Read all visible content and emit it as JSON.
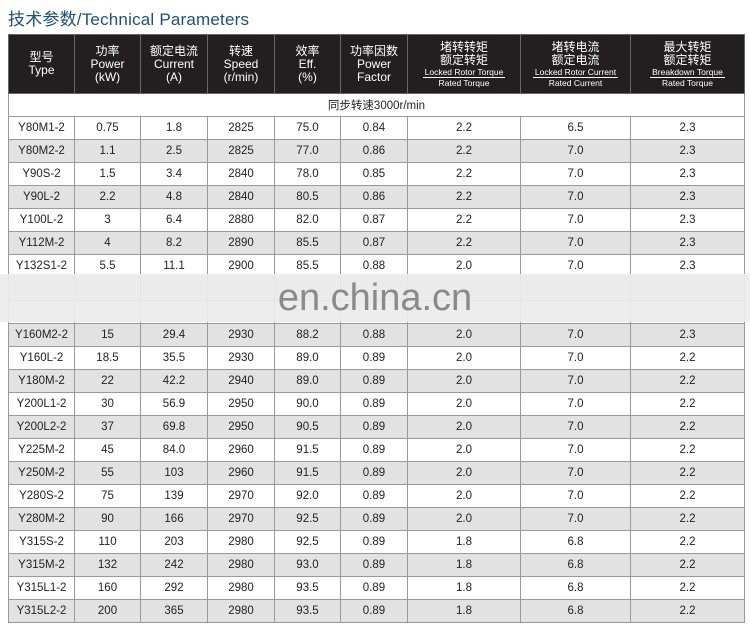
{
  "title": "技术参数/Technical Parameters",
  "headers": [
    {
      "cn": "型号",
      "en1": "Type"
    },
    {
      "cn": "功率",
      "en1": "Power",
      "en2": "(kW)"
    },
    {
      "cn": "额定电流",
      "en1": "Current",
      "en2": "(A)"
    },
    {
      "cn": "转速",
      "en1": "Speed",
      "en2": "(r/min)"
    },
    {
      "cn": "效率",
      "en1": "Eff.",
      "en2": "(%)"
    },
    {
      "cn": "功率因数",
      "en1": "Power",
      "en2": "Factor"
    },
    {
      "cn": "堵转转矩",
      "cn2": "额定转矩",
      "num": "Locked Rotor Torque",
      "den": "Rated Torque"
    },
    {
      "cn": "堵转电流",
      "cn2": "额定电流",
      "num": "Locked Rotor Current",
      "den": "Rated Current"
    },
    {
      "cn": "最大转矩",
      "cn2": "额定转矩",
      "num": "Breakdown Torque",
      "den": "Rated Torque"
    }
  ],
  "sync_speed": "同步转速3000r/min",
  "rows": [
    [
      "Y80M1-2",
      "0.75",
      "1.8",
      "2825",
      "75.0",
      "0.84",
      "2.2",
      "6.5",
      "2.3"
    ],
    [
      "Y80M2-2",
      "1.1",
      "2.5",
      "2825",
      "77.0",
      "0.86",
      "2.2",
      "7.0",
      "2.3"
    ],
    [
      "Y90S-2",
      "1.5",
      "3.4",
      "2840",
      "78.0",
      "0.85",
      "2.2",
      "7.0",
      "2.3"
    ],
    [
      "Y90L-2",
      "2.2",
      "4.8",
      "2840",
      "80.5",
      "0.86",
      "2.2",
      "7.0",
      "2.3"
    ],
    [
      "Y100L-2",
      "3",
      "6.4",
      "2880",
      "82.0",
      "0.87",
      "2.2",
      "7.0",
      "2.3"
    ],
    [
      "Y112M-2",
      "4",
      "8.2",
      "2890",
      "85.5",
      "0.87",
      "2.2",
      "7.0",
      "2.3"
    ],
    [
      "Y132S1-2",
      "5.5",
      "11.1",
      "2900",
      "85.5",
      "0.88",
      "2.0",
      "7.0",
      "2.3"
    ],
    [
      "",
      "",
      "",
      "",
      "",
      "",
      "",
      "",
      ""
    ],
    [
      "",
      "",
      "",
      "",
      "",
      "",
      "",
      "",
      ""
    ],
    [
      "Y160M2-2",
      "15",
      "29.4",
      "2930",
      "88.2",
      "0.88",
      "2.0",
      "7.0",
      "2.3"
    ],
    [
      "Y160L-2",
      "18.5",
      "35.5",
      "2930",
      "89.0",
      "0.89",
      "2.0",
      "7.0",
      "2.2"
    ],
    [
      "Y180M-2",
      "22",
      "42.2",
      "2940",
      "89.0",
      "0.89",
      "2.0",
      "7.0",
      "2.2"
    ],
    [
      "Y200L1-2",
      "30",
      "56.9",
      "2950",
      "90.0",
      "0.89",
      "2.0",
      "7.0",
      "2.2"
    ],
    [
      "Y200L2-2",
      "37",
      "69.8",
      "2950",
      "90.5",
      "0.89",
      "2.0",
      "7.0",
      "2.2"
    ],
    [
      "Y225M-2",
      "45",
      "84.0",
      "2960",
      "91.5",
      "0.89",
      "2.0",
      "7.0",
      "2.2"
    ],
    [
      "Y250M-2",
      "55",
      "103",
      "2960",
      "91.5",
      "0.89",
      "2.0",
      "7.0",
      "2.2"
    ],
    [
      "Y280S-2",
      "75",
      "139",
      "2970",
      "92.0",
      "0.89",
      "2.0",
      "7.0",
      "2.2"
    ],
    [
      "Y280M-2",
      "90",
      "166",
      "2970",
      "92.5",
      "0.89",
      "2.0",
      "7.0",
      "2.2"
    ],
    [
      "Y315S-2",
      "110",
      "203",
      "2980",
      "92.5",
      "0.89",
      "1.8",
      "6.8",
      "2.2"
    ],
    [
      "Y315M-2",
      "132",
      "242",
      "2980",
      "93.0",
      "0.89",
      "1.8",
      "6.8",
      "2.2"
    ],
    [
      "Y315L1-2",
      "160",
      "292",
      "2980",
      "93.5",
      "0.89",
      "1.8",
      "6.8",
      "2.2"
    ],
    [
      "Y315L2-2",
      "200",
      "365",
      "2980",
      "93.5",
      "0.89",
      "1.8",
      "6.8",
      "2.2"
    ]
  ],
  "watermark": "en.china.cn"
}
